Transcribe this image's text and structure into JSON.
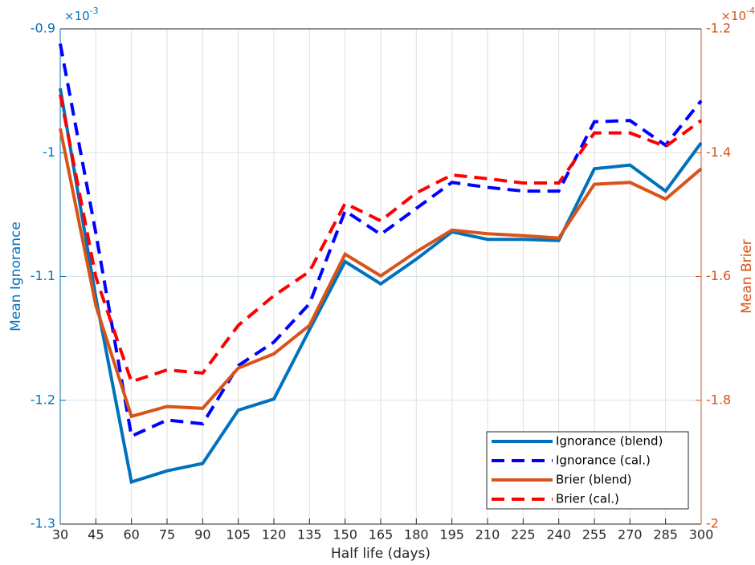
{
  "chart_data": {
    "type": "line",
    "xlabel": "Half life (days)",
    "ylabel": "Mean Ignorance",
    "y2label": "Mean Brier",
    "y_scale_label": {
      "base": "×10",
      "exponent": "-3"
    },
    "y2_scale_label": {
      "base": "×10",
      "exponent": "-4"
    },
    "x": [
      30,
      45,
      60,
      75,
      90,
      105,
      120,
      135,
      150,
      165,
      180,
      195,
      210,
      225,
      240,
      255,
      270,
      285,
      300
    ],
    "xlim": [
      30,
      300
    ],
    "xticks": [
      30,
      45,
      60,
      75,
      90,
      105,
      120,
      135,
      150,
      165,
      180,
      195,
      210,
      225,
      240,
      255,
      270,
      285,
      300
    ],
    "ylim": [
      -1.3,
      -0.9
    ],
    "yticks": [
      -1.3,
      -1.2,
      -1.1,
      -1,
      -0.9
    ],
    "y2lim": [
      -2,
      -1.2
    ],
    "y2ticks": [
      -2,
      -1.8,
      -1.6,
      -1.4,
      -1.2
    ],
    "grid": true,
    "legend": "lower right",
    "series": [
      {
        "name": "Ignorance (blend)",
        "color": "#0072bd",
        "dash": false,
        "values": [
          -0.948,
          -1.117,
          -1.266,
          -1.257,
          -1.251,
          -1.208,
          -1.199,
          -1.143,
          -1.088,
          -1.106,
          -1.086,
          -1.064,
          -1.07,
          -1.07,
          -1.071,
          -1.013,
          -1.01,
          -1.031,
          -0.992
        ]
      },
      {
        "name": "Ignorance (cal.)",
        "color": "#0000ff",
        "dash": true,
        "values": [
          -0.912,
          -1.065,
          -1.229,
          -1.216,
          -1.219,
          -1.172,
          -1.153,
          -1.122,
          -1.047,
          -1.066,
          -1.045,
          -1.024,
          -1.028,
          -1.031,
          -1.031,
          -0.975,
          -0.974,
          -0.994,
          -0.958
        ]
      },
      {
        "name": "Brier (blend)",
        "color": "#d95319",
        "dash": false,
        "axis": "y2",
        "values": [
          -1.361,
          -1.647,
          -1.826,
          -1.81,
          -1.813,
          -1.748,
          -1.725,
          -1.679,
          -1.564,
          -1.599,
          -1.56,
          -1.525,
          -1.531,
          -1.534,
          -1.538,
          -1.451,
          -1.448,
          -1.475,
          -1.426
        ]
      },
      {
        "name": "Brier (cal.)",
        "color": "#ff0000",
        "dash": true,
        "axis": "y2",
        "values": [
          -1.306,
          -1.601,
          -1.77,
          -1.751,
          -1.756,
          -1.679,
          -1.631,
          -1.592,
          -1.482,
          -1.51,
          -1.465,
          -1.436,
          -1.442,
          -1.449,
          -1.449,
          -1.368,
          -1.368,
          -1.39,
          -1.348
        ]
      }
    ]
  }
}
